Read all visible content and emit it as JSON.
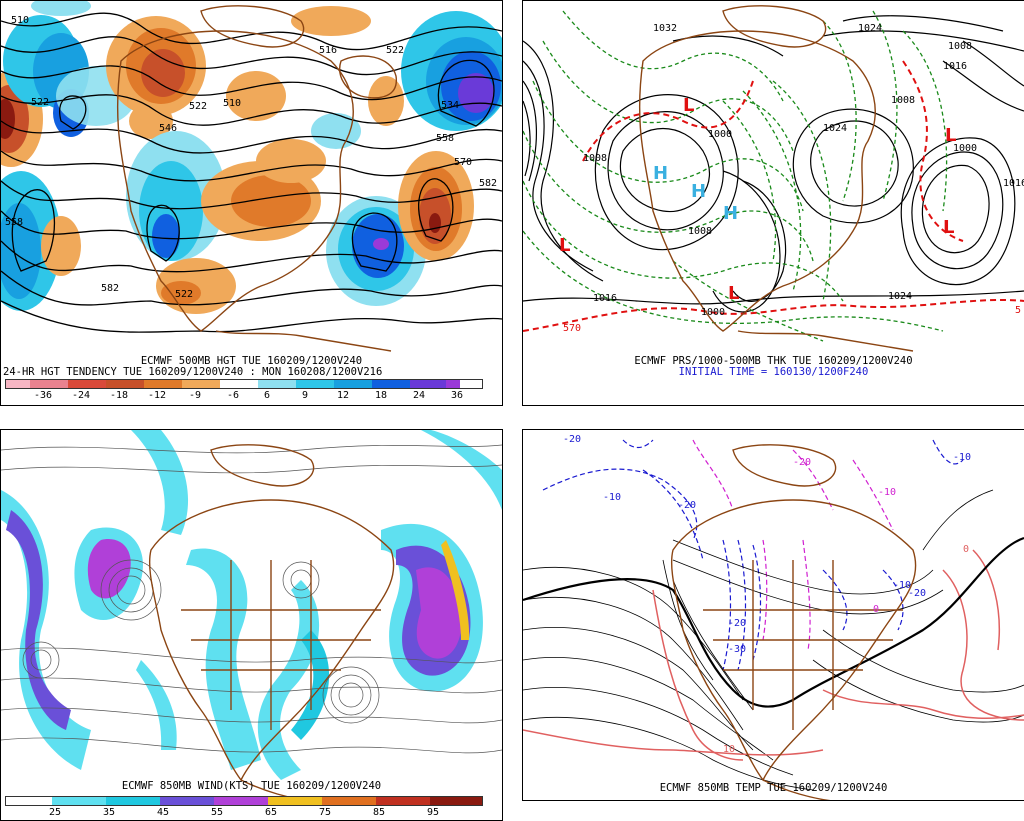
{
  "panels": {
    "p1": {
      "caption1": "ECMWF 500MB HGT TUE 160209/1200V240",
      "caption2": "24-HR HGT TENDENCY TUE 160209/1200V240 : MON 160208/1200V216",
      "legend": [
        "-36",
        "-24",
        "-18",
        "-12",
        "-9",
        "-6",
        "6",
        "9",
        "12",
        "18",
        "24",
        "36"
      ],
      "legend_colors": [
        "#f7b6c4",
        "#e9828f",
        "#d94a3a",
        "#c7502a",
        "#e07a2a",
        "#f0a95a",
        "#ffffff",
        "#8fe0f0",
        "#2fc6e8",
        "#18a0e0",
        "#1060e0",
        "#6a3ad8",
        "#9a3ad8"
      ],
      "contours": [
        "510",
        "522",
        "522",
        "522",
        "534",
        "546",
        "558",
        "558",
        "570",
        "582",
        "582",
        "516",
        "510",
        "522"
      ]
    },
    "p2": {
      "caption1": "ECMWF PRS/1000-500MB THK TUE 160209/1200V240",
      "caption2": "INITIAL TIME = 160130/1200F240",
      "labels": [
        "1032",
        "1024",
        "1024",
        "1024",
        "1016",
        "1016",
        "1016",
        "1008",
        "1008",
        "1008",
        "1008",
        "1000",
        "1000",
        "1000",
        "570",
        "5",
        "H",
        "H",
        "H",
        "L",
        "L",
        "L",
        "L",
        "L"
      ]
    },
    "p3": {
      "caption1": "ECMWF 850MB WIND(KTS) TUE 160209/1200V240",
      "legend": [
        "25",
        "35",
        "45",
        "55",
        "65",
        "75",
        "85",
        "95"
      ],
      "legend_colors": [
        "#ffffff",
        "#5fe0f0",
        "#20c8e0",
        "#6a50d8",
        "#b040d8",
        "#f0c020",
        "#e07020",
        "#c03020",
        "#8a1a10"
      ]
    },
    "p4": {
      "caption1": "ECMWF 850MB TEMP TUE 160209/1200V240",
      "labels": [
        "-20",
        "-10",
        "-10",
        "-20",
        "-30",
        "-20",
        "-20",
        "-10",
        "0",
        "0",
        "10",
        "-10",
        "-20"
      ]
    }
  }
}
